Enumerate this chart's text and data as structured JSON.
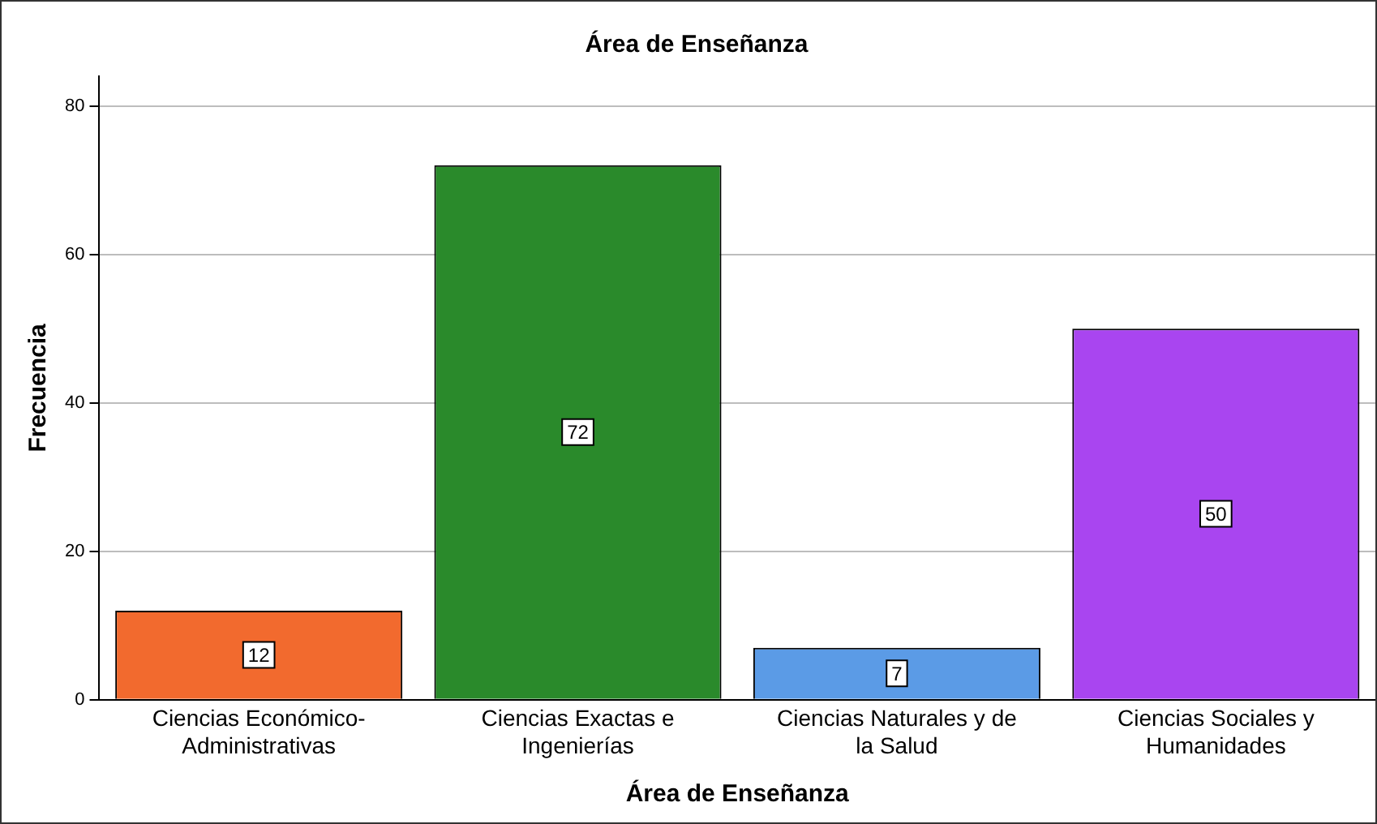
{
  "chart_data": {
    "type": "bar",
    "title": "Área de Enseñanza",
    "xlabel": "Área de Enseñanza",
    "ylabel": "Frecuencia",
    "categories": [
      "Ciencias Económico-Administrativas",
      "Ciencias Exactas e Ingenierías",
      "Ciencias Naturales y de la Salud",
      "Ciencias Sociales y Humanidades"
    ],
    "values": [
      12,
      72,
      7,
      50
    ],
    "colors": [
      "#f26a2e",
      "#2a8a2b",
      "#5b9be6",
      "#a945f0"
    ],
    "ylim": [
      0,
      84
    ],
    "yticks": [
      0,
      20,
      40,
      60,
      80
    ],
    "grid": "y",
    "data_labels": true,
    "legend": false
  }
}
